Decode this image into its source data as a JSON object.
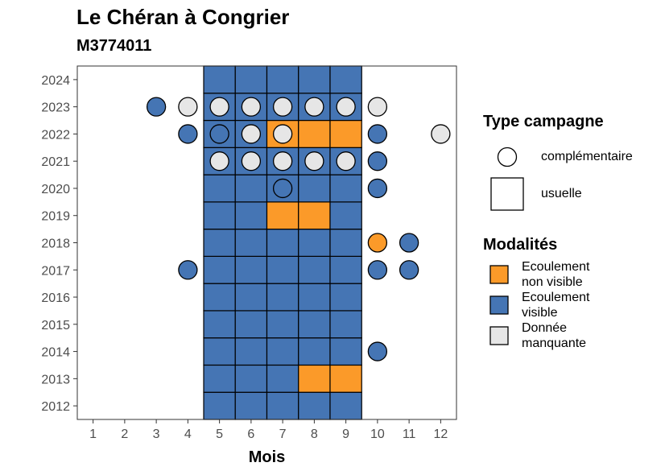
{
  "chart_data": {
    "type": "heatmap",
    "title": "Le Chéran à Congrier",
    "subtitle": "M3774011",
    "xlabel": "Mois",
    "ylabel": "",
    "x_ticks": [
      1,
      2,
      3,
      4,
      5,
      6,
      7,
      8,
      9,
      10,
      11,
      12
    ],
    "y_ticks": [
      2012,
      2013,
      2014,
      2015,
      2016,
      2017,
      2018,
      2019,
      2020,
      2021,
      2022,
      2023,
      2024
    ],
    "xlim": [
      0.5,
      12.5
    ],
    "ylim": [
      2011.5,
      2024.5
    ],
    "grid": false,
    "colors": {
      "Ecoulement non visible": "#fb9a29",
      "Ecoulement visible": "#4575b4",
      "Donnée manquante": "#e6e6e6"
    },
    "usuelle": [
      {
        "year": 2012,
        "months": [
          5,
          6,
          7,
          8,
          9
        ],
        "values": [
          "Ecoulement visible",
          "Ecoulement visible",
          "Ecoulement visible",
          "Ecoulement visible",
          "Ecoulement visible"
        ]
      },
      {
        "year": 2013,
        "months": [
          5,
          6,
          7,
          8,
          9
        ],
        "values": [
          "Ecoulement visible",
          "Ecoulement visible",
          "Ecoulement visible",
          "Ecoulement non visible",
          "Ecoulement non visible"
        ]
      },
      {
        "year": 2014,
        "months": [
          5,
          6,
          7,
          8,
          9
        ],
        "values": [
          "Ecoulement visible",
          "Ecoulement visible",
          "Ecoulement visible",
          "Ecoulement visible",
          "Ecoulement visible"
        ]
      },
      {
        "year": 2015,
        "months": [
          5,
          6,
          7,
          8,
          9
        ],
        "values": [
          "Ecoulement visible",
          "Ecoulement visible",
          "Ecoulement visible",
          "Ecoulement visible",
          "Ecoulement visible"
        ]
      },
      {
        "year": 2016,
        "months": [
          5,
          6,
          7,
          8,
          9
        ],
        "values": [
          "Ecoulement visible",
          "Ecoulement visible",
          "Ecoulement visible",
          "Ecoulement visible",
          "Ecoulement visible"
        ]
      },
      {
        "year": 2017,
        "months": [
          5,
          6,
          7,
          8,
          9
        ],
        "values": [
          "Ecoulement visible",
          "Ecoulement visible",
          "Ecoulement visible",
          "Ecoulement visible",
          "Ecoulement visible"
        ]
      },
      {
        "year": 2018,
        "months": [
          5,
          6,
          7,
          8,
          9
        ],
        "values": [
          "Ecoulement visible",
          "Ecoulement visible",
          "Ecoulement visible",
          "Ecoulement visible",
          "Ecoulement visible"
        ]
      },
      {
        "year": 2019,
        "months": [
          5,
          6,
          7,
          8,
          9
        ],
        "values": [
          "Ecoulement visible",
          "Ecoulement visible",
          "Ecoulement non visible",
          "Ecoulement non visible",
          "Ecoulement visible"
        ]
      },
      {
        "year": 2020,
        "months": [
          5,
          6,
          7,
          8,
          9
        ],
        "values": [
          "Ecoulement visible",
          "Ecoulement visible",
          "Ecoulement visible",
          "Ecoulement visible",
          "Ecoulement visible"
        ]
      },
      {
        "year": 2021,
        "months": [
          5,
          6,
          7,
          8,
          9
        ],
        "values": [
          "Ecoulement visible",
          "Ecoulement visible",
          "Ecoulement visible",
          "Ecoulement visible",
          "Ecoulement visible"
        ]
      },
      {
        "year": 2022,
        "months": [
          5,
          6,
          7,
          8,
          9
        ],
        "values": [
          "Ecoulement visible",
          "Ecoulement visible",
          "Ecoulement non visible",
          "Ecoulement non visible",
          "Ecoulement non visible"
        ]
      },
      {
        "year": 2023,
        "months": [
          5,
          6,
          7,
          8,
          9
        ],
        "values": [
          "Ecoulement visible",
          "Ecoulement visible",
          "Ecoulement visible",
          "Ecoulement visible",
          "Ecoulement visible"
        ]
      },
      {
        "year": 2024,
        "months": [
          5,
          6,
          7,
          8,
          9
        ],
        "values": [
          "Ecoulement visible",
          "Ecoulement visible",
          "Ecoulement visible",
          "Ecoulement visible",
          "Ecoulement visible"
        ]
      }
    ],
    "complementaire": [
      {
        "year": 2014,
        "month": 10,
        "value": "Ecoulement visible"
      },
      {
        "year": 2017,
        "month": 4,
        "value": "Ecoulement visible"
      },
      {
        "year": 2017,
        "month": 10,
        "value": "Ecoulement visible"
      },
      {
        "year": 2017,
        "month": 11,
        "value": "Ecoulement visible"
      },
      {
        "year": 2018,
        "month": 10,
        "value": "Ecoulement non visible"
      },
      {
        "year": 2018,
        "month": 11,
        "value": "Ecoulement visible"
      },
      {
        "year": 2020,
        "month": 7,
        "value": "Ecoulement visible"
      },
      {
        "year": 2020,
        "month": 10,
        "value": "Ecoulement visible"
      },
      {
        "year": 2021,
        "month": 5,
        "value": "Donnée manquante"
      },
      {
        "year": 2021,
        "month": 6,
        "value": "Donnée manquante"
      },
      {
        "year": 2021,
        "month": 7,
        "value": "Donnée manquante"
      },
      {
        "year": 2021,
        "month": 8,
        "value": "Donnée manquante"
      },
      {
        "year": 2021,
        "month": 9,
        "value": "Donnée manquante"
      },
      {
        "year": 2021,
        "month": 10,
        "value": "Ecoulement visible"
      },
      {
        "year": 2022,
        "month": 4,
        "value": "Ecoulement visible"
      },
      {
        "year": 2022,
        "month": 5,
        "value": "Ecoulement visible"
      },
      {
        "year": 2022,
        "month": 6,
        "value": "Donnée manquante"
      },
      {
        "year": 2022,
        "month": 7,
        "value": "Donnée manquante"
      },
      {
        "year": 2022,
        "month": 10,
        "value": "Ecoulement visible"
      },
      {
        "year": 2022,
        "month": 12,
        "value": "Donnée manquante"
      },
      {
        "year": 2023,
        "month": 3,
        "value": "Ecoulement visible"
      },
      {
        "year": 2023,
        "month": 4,
        "value": "Donnée manquante"
      },
      {
        "year": 2023,
        "month": 5,
        "value": "Donnée manquante"
      },
      {
        "year": 2023,
        "month": 6,
        "value": "Donnée manquante"
      },
      {
        "year": 2023,
        "month": 7,
        "value": "Donnée manquante"
      },
      {
        "year": 2023,
        "month": 8,
        "value": "Donnée manquante"
      },
      {
        "year": 2023,
        "month": 9,
        "value": "Donnée manquante"
      },
      {
        "year": 2023,
        "month": 10,
        "value": "Donnée manquante"
      }
    ],
    "legend": {
      "type_title": "Type campagne",
      "type_items": [
        "complémentaire",
        "usuelle"
      ],
      "modalites_title": "Modalités",
      "modalites_items": [
        {
          "line1": "Ecoulement",
          "line2": "non visible",
          "key": "Ecoulement non visible"
        },
        {
          "line1": "Ecoulement",
          "line2": "visible",
          "key": "Ecoulement visible"
        },
        {
          "line1": "Donnée",
          "line2": "manquante",
          "key": "Donnée manquante"
        }
      ],
      "placement": "right"
    }
  }
}
